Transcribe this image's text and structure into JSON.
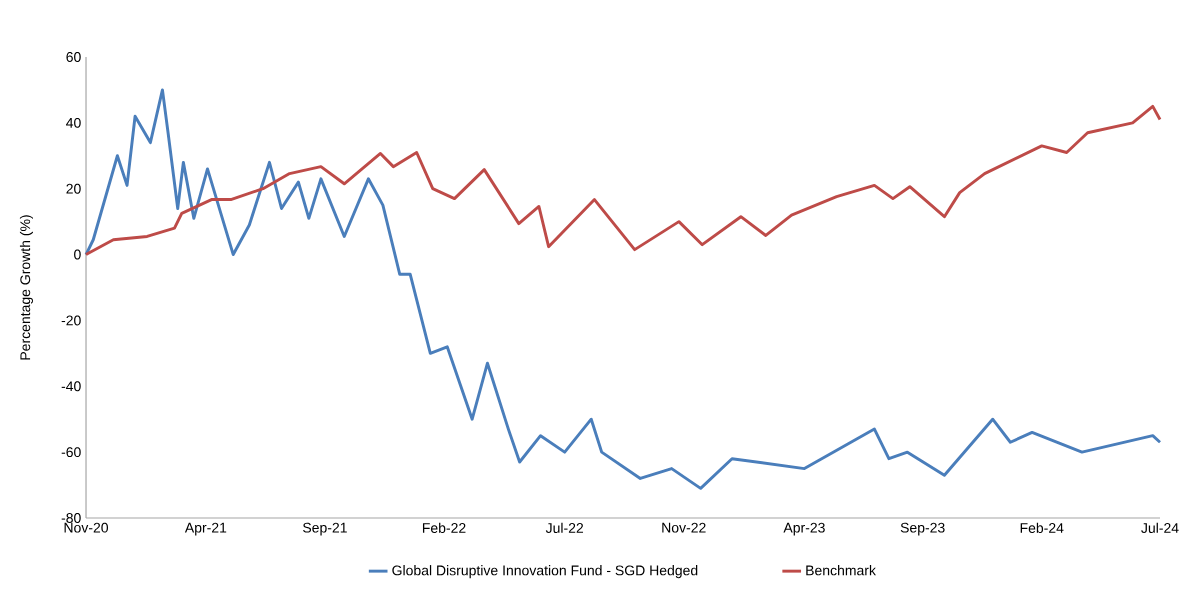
{
  "chart_data": {
    "type": "line",
    "ylabel": "Percentage Growth (%)",
    "xlim": [
      "2020-11-13",
      "2024-07-10"
    ],
    "ylim": [
      -80,
      60
    ],
    "yticks": [
      -80,
      -60,
      -40,
      -20,
      0,
      20,
      40,
      60
    ],
    "xticks": [
      {
        "value": "2020-11-13",
        "label": "Nov-20"
      },
      {
        "value": "2021-04-11",
        "label": "Apr-21"
      },
      {
        "value": "2021-09-06",
        "label": "Sep-21"
      },
      {
        "value": "2022-02-01",
        "label": "Feb-22"
      },
      {
        "value": "2022-07-01",
        "label": "Jul-22"
      },
      {
        "value": "2022-11-26",
        "label": "Nov-22"
      },
      {
        "value": "2023-04-25",
        "label": "Apr-23"
      },
      {
        "value": "2023-09-19",
        "label": "Sep-23"
      },
      {
        "value": "2024-02-14",
        "label": "Feb-24"
      },
      {
        "value": "2024-07-10",
        "label": "Jul-24"
      }
    ],
    "grid": false,
    "legend": "bottom",
    "marker": "none",
    "line_style": "solid",
    "series": [
      {
        "name": "Global Disruptive Innovation Fund - SGD Hedged",
        "color": "#4a7ebb",
        "x": [
          "2020-11-13",
          "2020-11-22",
          "2020-12-22",
          "2021-01-03",
          "2021-01-13",
          "2021-02-01",
          "2021-02-16",
          "2021-02-23",
          "2021-03-07",
          "2021-03-14",
          "2021-03-27",
          "2021-04-13",
          "2021-05-15",
          "2021-06-04",
          "2021-06-29",
          "2021-07-14",
          "2021-08-04",
          "2021-08-17",
          "2021-09-01",
          "2021-09-30",
          "2021-10-30",
          "2021-11-17",
          "2021-12-08",
          "2021-12-21",
          "2022-01-15",
          "2022-02-05",
          "2022-03-08",
          "2022-03-27",
          "2022-04-22",
          "2022-05-06",
          "2022-06-01",
          "2022-07-01",
          "2022-08-03",
          "2022-08-16",
          "2022-10-03",
          "2022-11-11",
          "2022-12-17",
          "2023-01-25",
          "2023-04-25",
          "2023-07-21",
          "2023-08-08",
          "2023-08-31",
          "2023-10-16",
          "2023-12-15",
          "2024-01-06",
          "2024-02-02",
          "2024-04-04",
          "2024-07-01",
          "2024-07-10"
        ],
        "values": [
          0,
          4.5,
          30,
          21,
          42,
          34,
          50,
          37,
          14,
          28,
          11,
          26,
          0,
          9,
          28,
          14,
          22,
          11,
          23,
          5.5,
          23,
          15,
          -6,
          -6,
          -30,
          -28,
          -50,
          -33,
          -53,
          -63,
          -55,
          -60,
          -50,
          -60,
          -68,
          -65,
          -71,
          -62,
          -65,
          -53,
          -62,
          -60,
          -67,
          -50,
          -57,
          -54,
          -60,
          -55,
          -57
        ]
      },
      {
        "name": "Benchmark",
        "color": "#be4b48",
        "x": [
          "2020-11-13",
          "2020-12-17",
          "2021-01-28",
          "2021-03-03",
          "2021-03-12",
          "2021-04-18",
          "2021-05-12",
          "2021-06-21",
          "2021-07-24",
          "2021-09-01",
          "2021-09-30",
          "2021-11-14",
          "2021-11-30",
          "2021-12-29",
          "2022-01-18",
          "2022-02-14",
          "2022-03-23",
          "2022-05-05",
          "2022-05-30",
          "2022-06-11",
          "2022-08-07",
          "2022-09-26",
          "2022-11-20",
          "2022-12-19",
          "2023-02-05",
          "2023-03-08",
          "2023-04-09",
          "2023-06-04",
          "2023-07-21",
          "2023-08-13",
          "2023-09-03",
          "2023-10-16",
          "2023-11-04",
          "2023-12-05",
          "2024-02-14",
          "2024-03-16",
          "2024-04-11",
          "2024-06-06",
          "2024-07-01",
          "2024-07-10"
        ],
        "values": [
          0,
          4.5,
          5.5,
          8,
          12.5,
          16.7,
          16.7,
          20,
          24.6,
          26.7,
          21.5,
          30.7,
          26.7,
          31,
          20,
          17,
          25.8,
          9.4,
          14.6,
          2.4,
          16.7,
          1.5,
          10,
          3,
          11.5,
          5.8,
          12,
          17.6,
          21,
          17,
          20.6,
          11.5,
          18.8,
          24.6,
          33,
          31,
          37,
          40,
          45,
          41
        ]
      }
    ]
  }
}
